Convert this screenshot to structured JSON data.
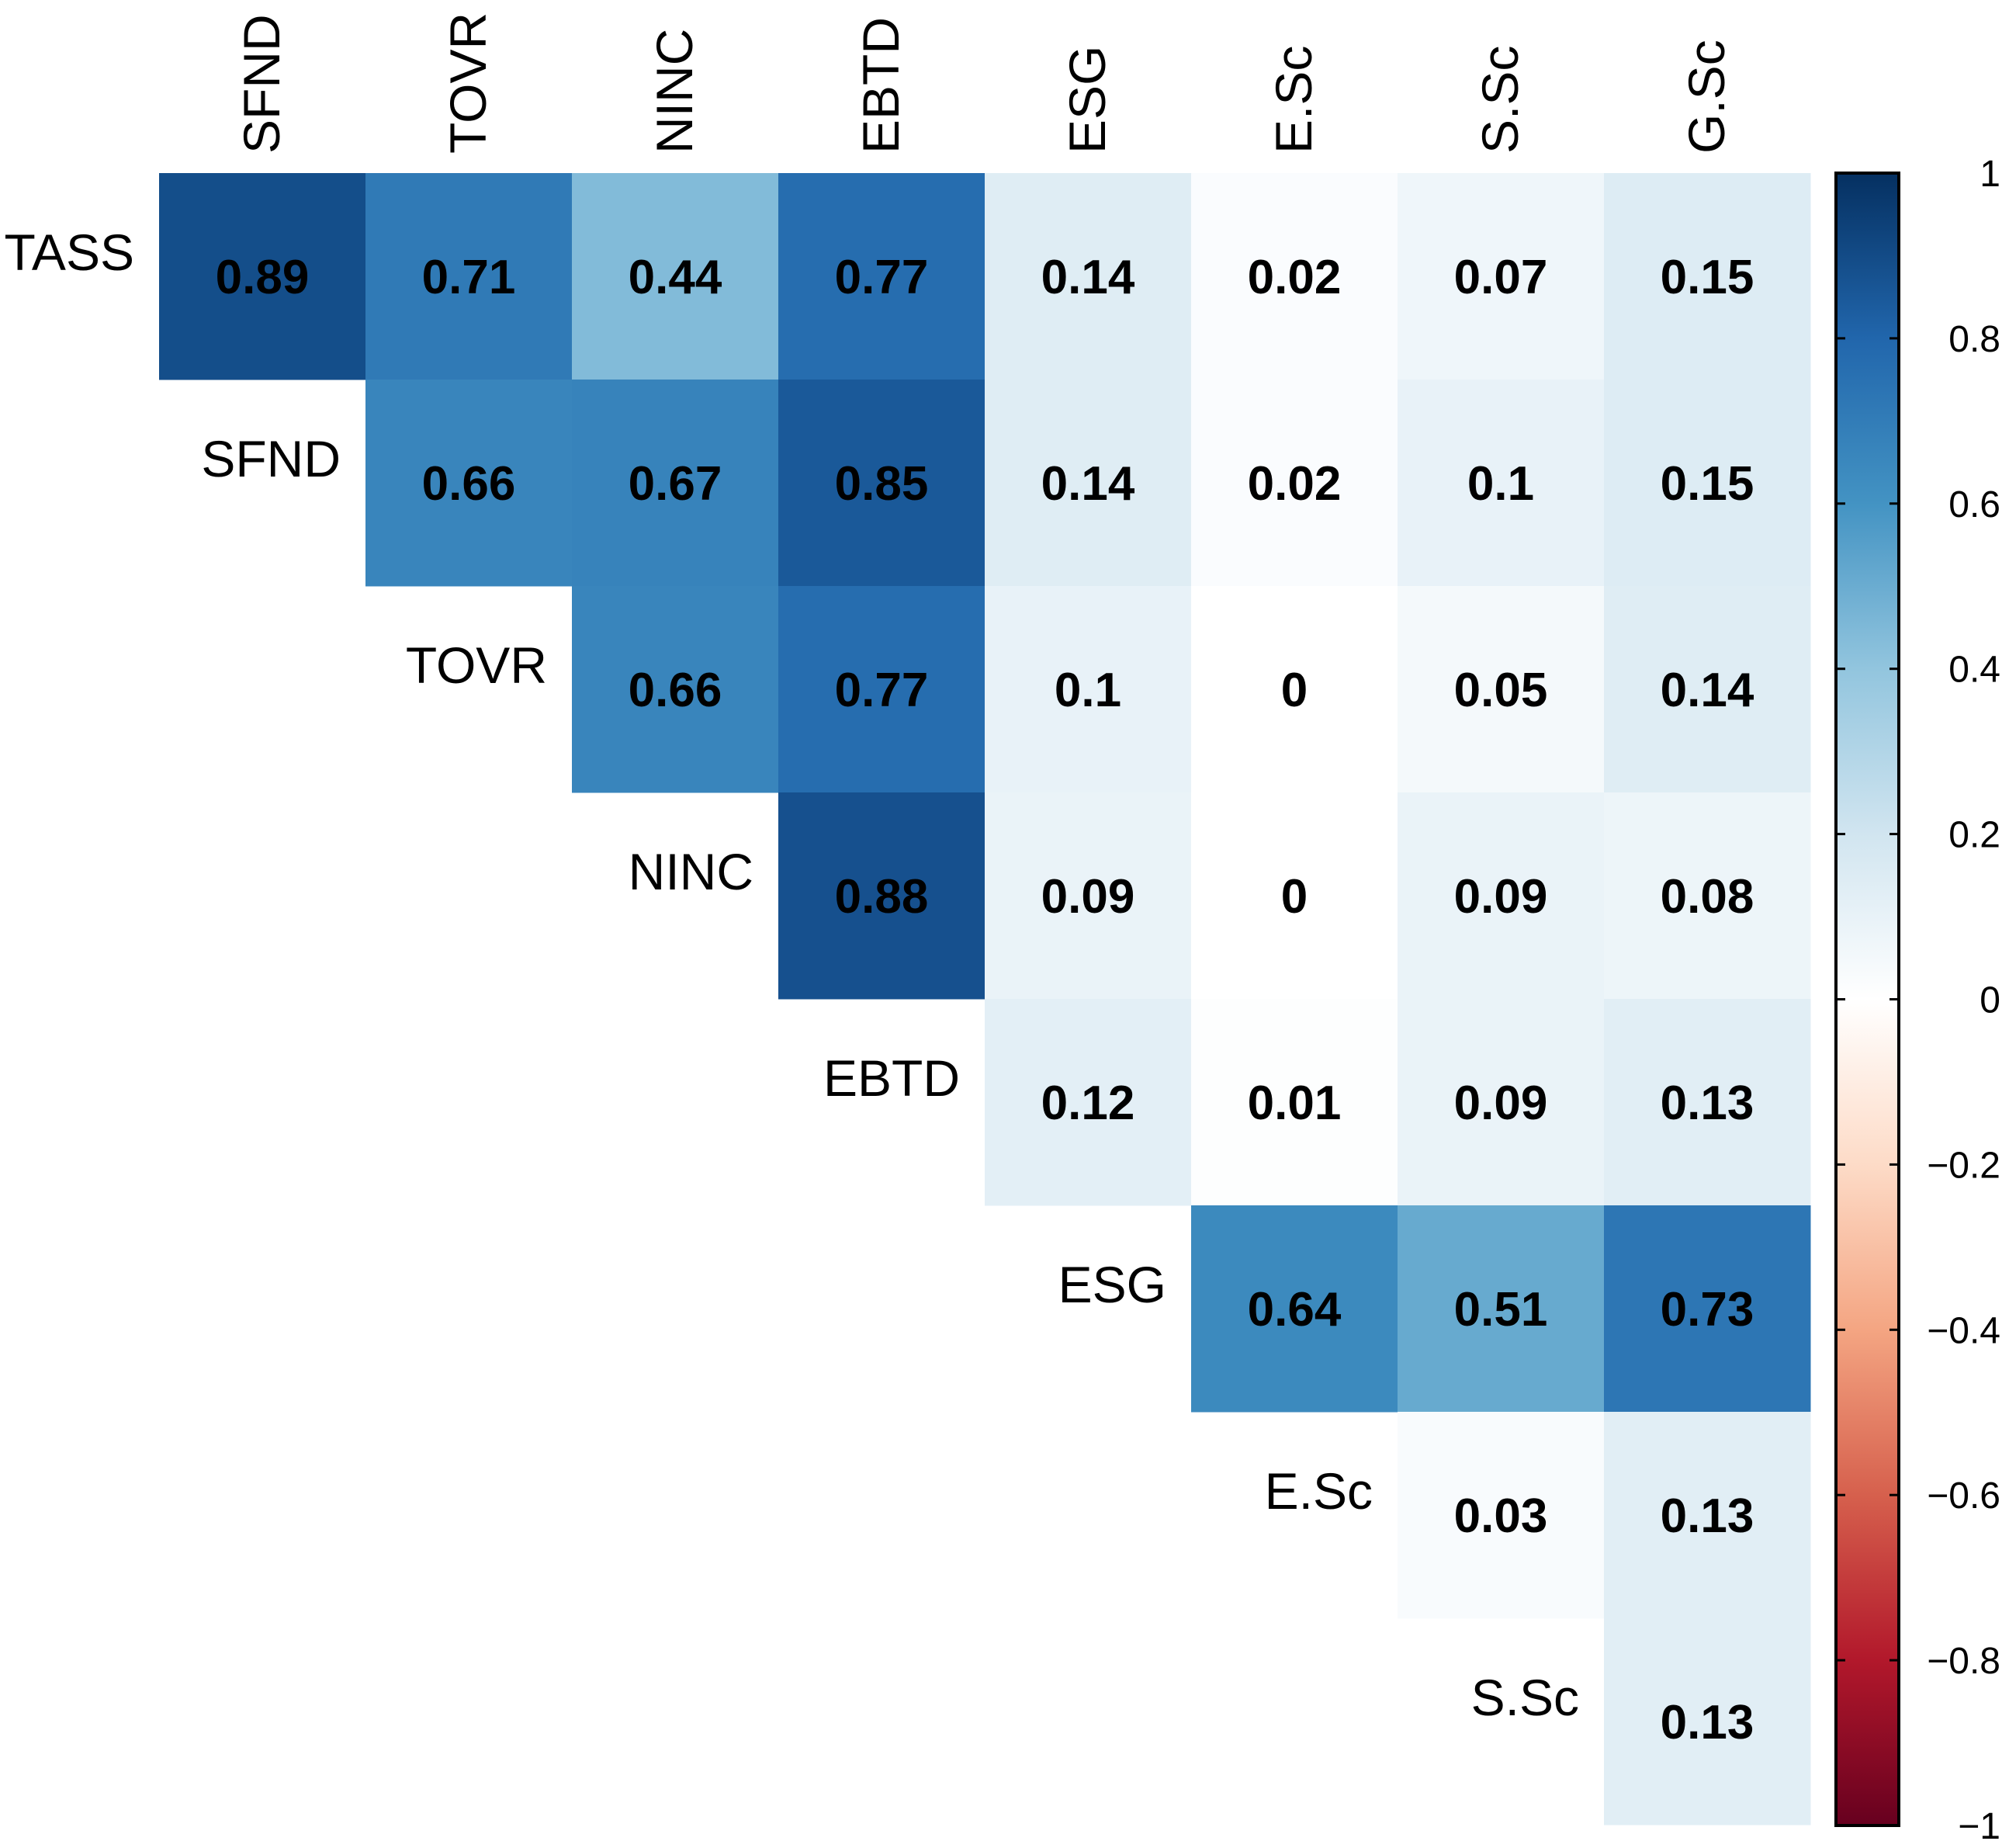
{
  "chart_data": {
    "type": "heatmap",
    "subtype": "correlation-matrix-upper-triangle",
    "row_variables": [
      "TASS",
      "SFND",
      "TOVR",
      "NINC",
      "EBTD",
      "ESG",
      "E.Sc",
      "S.Sc"
    ],
    "column_variables": [
      "SFND",
      "TOVR",
      "NINC",
      "EBTD",
      "ESG",
      "E.Sc",
      "S.Sc",
      "G.Sc"
    ],
    "values": [
      [
        0.89,
        0.71,
        0.44,
        0.77,
        0.14,
        0.02,
        0.07,
        0.15
      ],
      [
        null,
        0.66,
        0.67,
        0.85,
        0.14,
        0.02,
        0.1,
        0.15
      ],
      [
        null,
        null,
        0.66,
        0.77,
        0.1,
        0,
        0.05,
        0.14
      ],
      [
        null,
        null,
        null,
        0.88,
        0.09,
        0,
        0.09,
        0.08
      ],
      [
        null,
        null,
        null,
        null,
        0.12,
        0.01,
        0.09,
        0.13
      ],
      [
        null,
        null,
        null,
        null,
        null,
        0.64,
        0.51,
        0.73
      ],
      [
        null,
        null,
        null,
        null,
        null,
        null,
        0.03,
        0.13
      ],
      [
        null,
        null,
        null,
        null,
        null,
        null,
        null,
        0.13
      ]
    ],
    "colorbar": {
      "range": [
        -1,
        1
      ],
      "ticks": [
        1,
        0.8,
        0.6,
        0.4,
        0.2,
        0,
        -0.2,
        -0.4,
        -0.6,
        -0.8,
        -1
      ],
      "tick_labels": [
        "1",
        "0.8",
        "0.6",
        "0.4",
        "0.2",
        "0",
        "−0.2",
        "−0.4",
        "−0.6",
        "−0.8",
        "−1"
      ],
      "colors": [
        "#67001F",
        "#B2182B",
        "#D6604D",
        "#F4A582",
        "#FDDBC7",
        "#FFFFFF",
        "#D1E5F0",
        "#92C5DE",
        "#4393C3",
        "#2166AC",
        "#053061"
      ]
    },
    "legend_position": "right"
  }
}
